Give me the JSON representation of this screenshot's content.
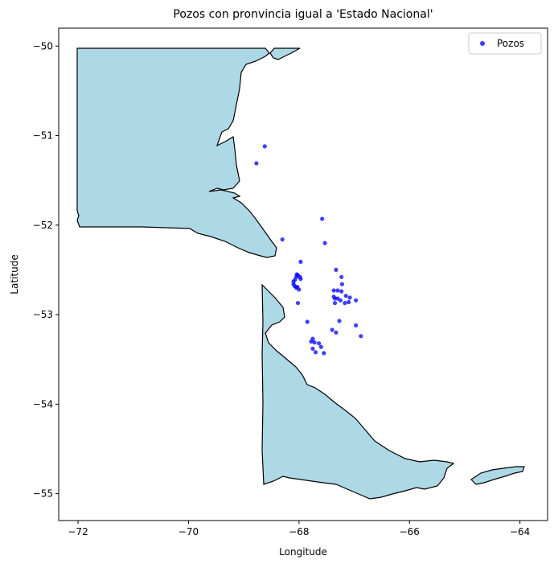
{
  "chart_data": {
    "type": "scatter",
    "title": "Pozos con pronvincia igual a 'Estado Nacional'",
    "xlabel": "Longitude",
    "ylabel": "Latitude",
    "xlim": [
      -72.35,
      -63.5
    ],
    "ylim": [
      -55.3,
      -49.8
    ],
    "xticks": [
      -72,
      -70,
      -68,
      -66,
      -64
    ],
    "yticks": [
      -50,
      -51,
      -52,
      -53,
      -54,
      -55
    ],
    "xtick_labels": [
      "−72",
      "−70",
      "−68",
      "−66",
      "−64"
    ],
    "ytick_labels": [
      "−50",
      "−51",
      "−52",
      "−53",
      "−54",
      "−55"
    ],
    "grid": false,
    "legend_position": "top-right",
    "colors": {
      "land_fill": "#add8e6",
      "land_edge": "#000000",
      "points": "#0000ff"
    },
    "series": [
      {
        "name": "Pozos",
        "x": [
          -68.62,
          -68.77,
          -67.58,
          -67.53,
          -68.3,
          -67.97,
          -67.33,
          -67.23,
          -67.22,
          -67.37,
          -67.3,
          -67.23,
          -67.37,
          -67.35,
          -67.15,
          -67.08,
          -67.3,
          -67.25,
          -67.35,
          -67.1,
          -67.17,
          -66.97,
          -67.27,
          -67.4,
          -67.33,
          -66.97,
          -66.88,
          -68.07,
          -68.1,
          -68.05,
          -68.02,
          -67.98,
          -67.97,
          -68.08,
          -68.1,
          -68.05,
          -68.0,
          -68.04,
          -68.02,
          -67.85,
          -67.78,
          -67.72,
          -67.75,
          -67.7,
          -67.75,
          -67.6,
          -67.64,
          -67.55,
          -68.03
        ],
        "y": [
          -51.12,
          -51.31,
          -51.93,
          -52.2,
          -52.16,
          -52.41,
          -52.5,
          -52.58,
          -52.66,
          -52.73,
          -52.73,
          -52.74,
          -52.8,
          -52.82,
          -52.79,
          -52.81,
          -52.82,
          -52.84,
          -52.87,
          -52.86,
          -52.87,
          -52.84,
          -53.07,
          -53.17,
          -53.2,
          -53.12,
          -53.24,
          -52.61,
          -52.63,
          -52.58,
          -52.56,
          -52.58,
          -52.6,
          -52.68,
          -52.66,
          -52.7,
          -52.72,
          -52.55,
          -52.87,
          -53.08,
          -53.3,
          -53.31,
          -53.38,
          -53.42,
          -53.27,
          -53.36,
          -53.32,
          -53.43,
          -52.69
        ]
      }
    ]
  }
}
